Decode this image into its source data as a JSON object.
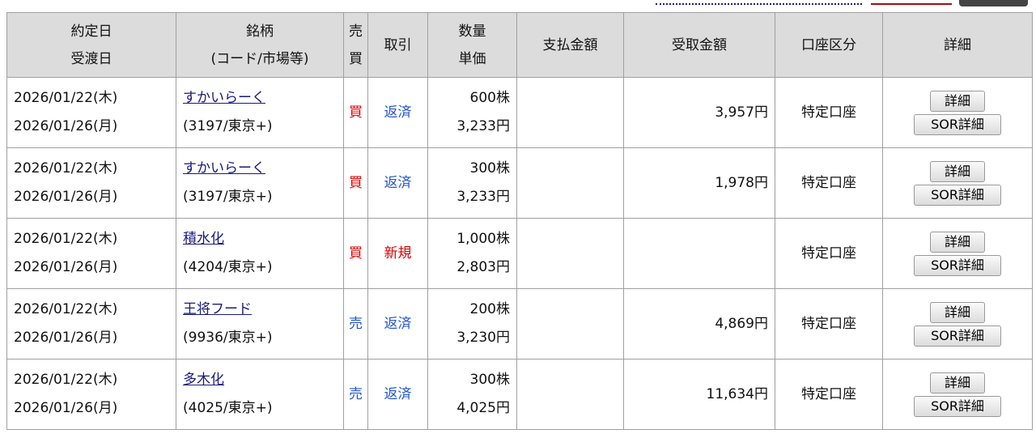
{
  "header": {
    "trade_date": "約定日",
    "settle_date": "受渡日",
    "name": "銘柄",
    "code_market": "(コード/市場等)",
    "sell": "売",
    "buy": "買",
    "trade": "取引",
    "qty": "数量",
    "price": "単価",
    "pay": "支払金額",
    "receive": "受取金額",
    "account": "口座区分",
    "detail": "詳細"
  },
  "buttons": {
    "detail": "詳細",
    "sor": "SOR詳細"
  },
  "rows": [
    {
      "trade_date": "2026/01/22(木)",
      "settle_date": "2026/01/26(月)",
      "name": "すかいらーく",
      "code": "(3197/東京+)",
      "side": "買",
      "type": "返済",
      "qty": "600株",
      "price": "3,233円",
      "pay": "",
      "receive": "3,957円",
      "account": "特定口座"
    },
    {
      "trade_date": "2026/01/22(木)",
      "settle_date": "2026/01/26(月)",
      "name": "すかいらーく",
      "code": "(3197/東京+)",
      "side": "買",
      "type": "返済",
      "qty": "300株",
      "price": "3,233円",
      "pay": "",
      "receive": "1,978円",
      "account": "特定口座"
    },
    {
      "trade_date": "2026/01/22(木)",
      "settle_date": "2026/01/26(月)",
      "name": "積水化",
      "code": "(4204/東京+)",
      "side": "買",
      "type": "新規",
      "qty": "1,000株",
      "price": "2,803円",
      "pay": "",
      "receive": "",
      "account": "特定口座"
    },
    {
      "trade_date": "2026/01/22(木)",
      "settle_date": "2026/01/26(月)",
      "name": "王将フード",
      "code": "(9936/東京+)",
      "side": "売",
      "type": "返済",
      "qty": "200株",
      "price": "3,230円",
      "pay": "",
      "receive": "4,869円",
      "account": "特定口座"
    },
    {
      "trade_date": "2026/01/22(木)",
      "settle_date": "2026/01/26(月)",
      "name": "多木化",
      "code": "(4025/東京+)",
      "side": "売",
      "type": "返済",
      "qty": "300株",
      "price": "4,025円",
      "pay": "",
      "receive": "11,634円",
      "account": "特定口座"
    }
  ]
}
